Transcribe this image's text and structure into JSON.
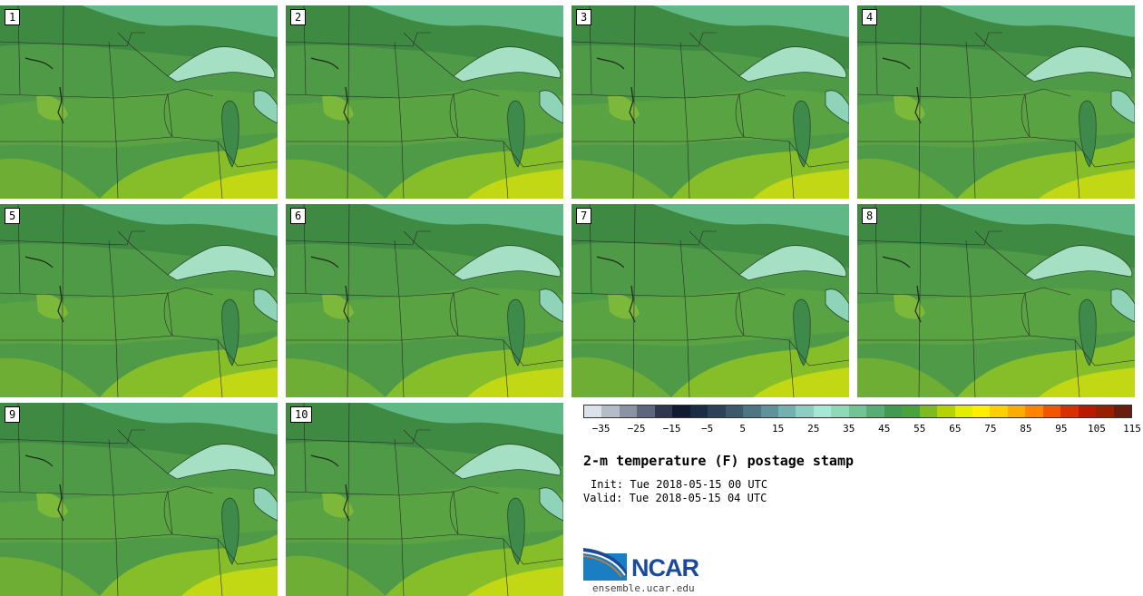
{
  "panels": [
    {
      "label": "1"
    },
    {
      "label": "2"
    },
    {
      "label": "3"
    },
    {
      "label": "4"
    },
    {
      "label": "5"
    },
    {
      "label": "6"
    },
    {
      "label": "7"
    },
    {
      "label": "8"
    },
    {
      "label": "9"
    },
    {
      "label": "10"
    }
  ],
  "colorbar": {
    "colors": [
      "#dde2ea",
      "#b5bcc8",
      "#8a93a4",
      "#5c667c",
      "#2f3850",
      "#111a30",
      "#1b2c46",
      "#2b4258",
      "#3c5a6c",
      "#4e7682",
      "#5f929a",
      "#74b0b0",
      "#8ccfc2",
      "#a6e8d6",
      "#8fd9b8",
      "#72c495",
      "#58ad75",
      "#3f9a52",
      "#4aa23c",
      "#7cbb22",
      "#b4d400",
      "#e4ee00",
      "#fff000",
      "#ffd000",
      "#ffac00",
      "#ff8400",
      "#f25500",
      "#d93000",
      "#b81a00",
      "#962000",
      "#6a1c10"
    ],
    "ticks": [
      "−35",
      "−25",
      "−15",
      "−5",
      "5",
      "15",
      "25",
      "35",
      "45",
      "55",
      "65",
      "75",
      "85",
      "95",
      "105",
      "115"
    ]
  },
  "title": "2-m temperature (F) postage stamp",
  "init_text": "Init: Tue 2018-05-15 00 UTC",
  "valid_text": "Valid: Tue 2018-05-15 04 UTC",
  "logo_text": "NCAR",
  "url_text": "ensemble.ucar.edu"
}
